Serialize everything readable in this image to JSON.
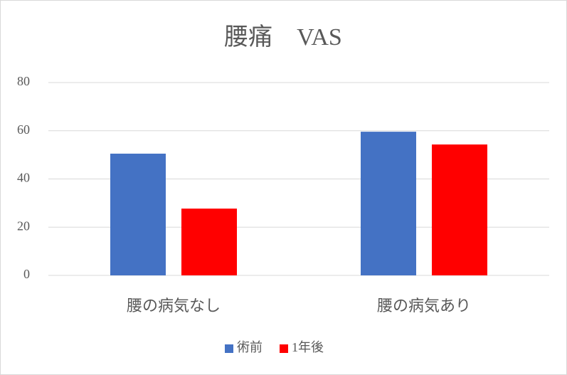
{
  "chart_data": {
    "type": "bar",
    "title": "腰痛　VAS",
    "categories": [
      "腰の病気なし",
      "腰の病気あり"
    ],
    "series": [
      {
        "name": "術前",
        "color": "#4472c4",
        "values": [
          50.5,
          59.6
        ]
      },
      {
        "name": "1年後",
        "color": "#ff0000",
        "values": [
          27.7,
          54.3
        ]
      }
    ],
    "ylim": [
      0,
      80
    ],
    "yticks": [
      0,
      20,
      40,
      60,
      80
    ],
    "grid": true,
    "legend": "bottom"
  }
}
